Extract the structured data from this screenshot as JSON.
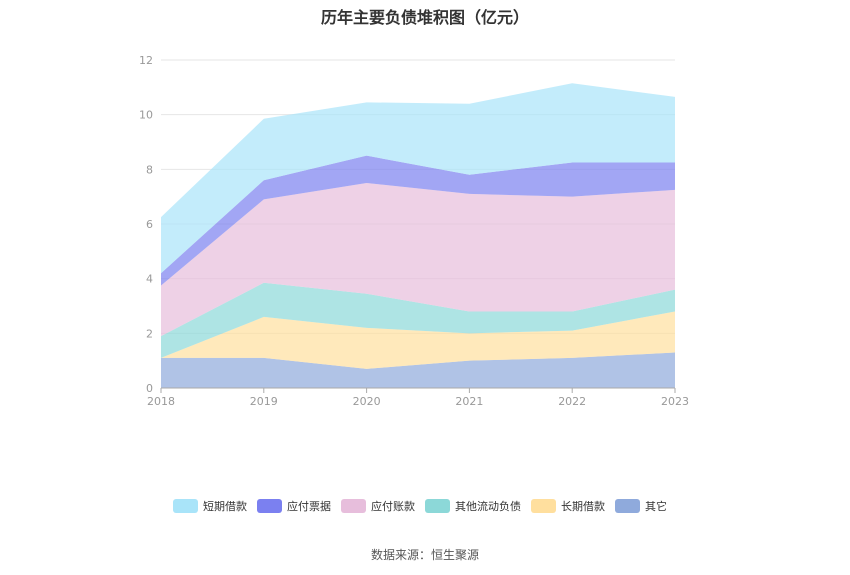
{
  "title": "历年主要负债堆积图（亿元）",
  "source": "数据来源：恒生聚源",
  "chart_data": {
    "type": "area",
    "stacked": true,
    "title": "历年主要负债堆积图（亿元）",
    "x": [
      "2018",
      "2019",
      "2020",
      "2021",
      "2022",
      "2023"
    ],
    "ylim": [
      0,
      12
    ],
    "yticks": [
      0,
      2,
      4,
      6,
      8,
      10,
      12
    ],
    "grid": true,
    "legend_position": "bottom",
    "series": [
      {
        "name": "其它",
        "color": "#8FAADC",
        "values": [
          1.1,
          1.1,
          0.7,
          1.0,
          1.1,
          1.3
        ]
      },
      {
        "name": "长期借款",
        "color": "#FFDF9E",
        "values": [
          0.0,
          1.5,
          1.5,
          1.0,
          1.0,
          1.5
        ]
      },
      {
        "name": "其他流动负债",
        "color": "#8CD8D8",
        "values": [
          0.8,
          1.25,
          1.25,
          0.8,
          0.7,
          0.8
        ]
      },
      {
        "name": "应付账款",
        "color": "#E7BEDC",
        "values": [
          1.85,
          3.05,
          4.05,
          4.3,
          4.2,
          3.65
        ]
      },
      {
        "name": "应付票据",
        "color": "#7B80F0",
        "values": [
          0.45,
          0.7,
          1.0,
          0.7,
          1.25,
          1.0
        ]
      },
      {
        "name": "短期借款",
        "color": "#A9E4F9",
        "values": [
          2.05,
          2.25,
          1.95,
          2.6,
          2.9,
          2.4
        ]
      }
    ],
    "legend_order": [
      "短期借款",
      "应付票据",
      "应付账款",
      "其他流动负债",
      "长期借款",
      "其它"
    ]
  }
}
